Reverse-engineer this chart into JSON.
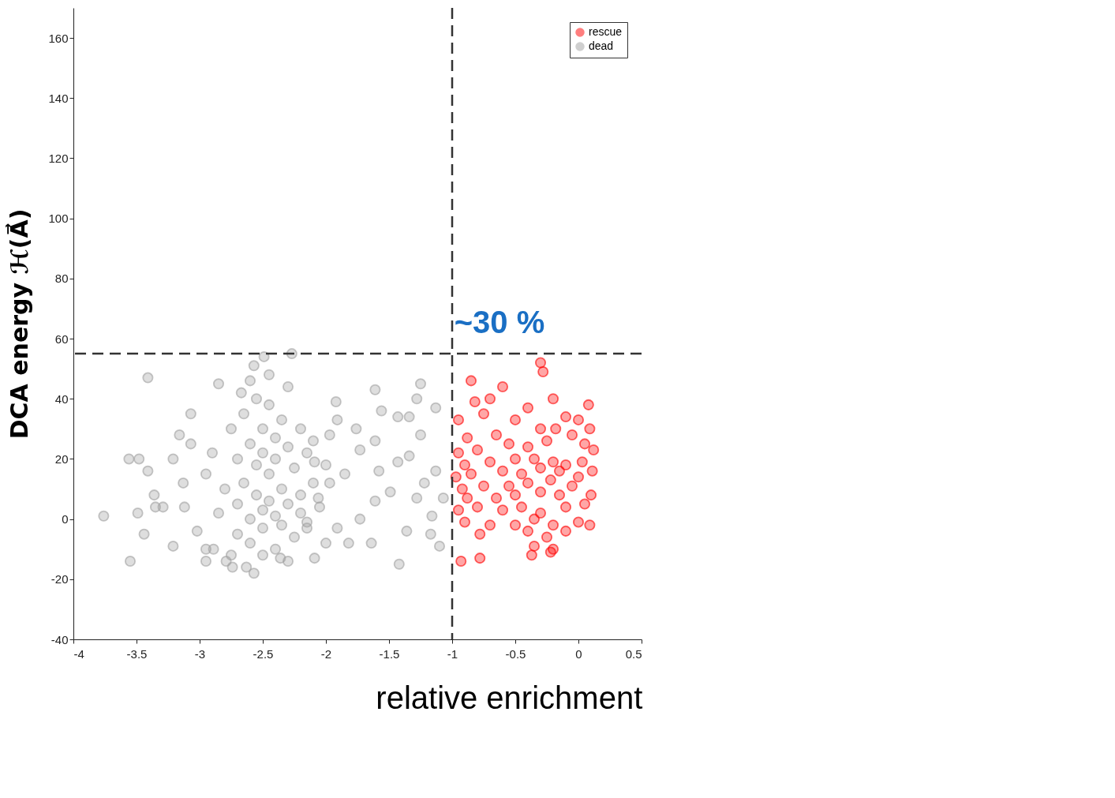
{
  "chart_data": {
    "type": "scatter",
    "xlabel": "relative enrichment",
    "ylabel": "DCA energy ℋ(A⃗)",
    "xlim": [
      -4,
      0.5
    ],
    "xticks": [
      -4,
      -3.5,
      -3,
      -2.5,
      -2,
      -1.5,
      -1,
      -0.5,
      0,
      0.5
    ],
    "ylim": [
      -40,
      170
    ],
    "yticks": [
      -40,
      -20,
      0,
      20,
      40,
      60,
      80,
      100,
      120,
      140,
      160
    ],
    "grid": false,
    "legend": "top right",
    "marker": "circle",
    "ref_lines": [
      {
        "axis": "x",
        "value": -1,
        "line_style": "dashed",
        "color": "#333333"
      },
      {
        "axis": "y",
        "value": 55,
        "line_style": "dashed",
        "color": "#333333"
      }
    ],
    "annotations": [
      "~30 %"
    ],
    "series": [
      {
        "name": "rescue",
        "color": "#ff0000",
        "x": [
          -0.93,
          -0.78,
          -0.37,
          -0.22,
          -0.3,
          -0.28,
          -0.85,
          -0.6,
          -0.2,
          -0.82,
          -0.7,
          0.08,
          -0.4,
          -0.95,
          -0.75,
          -0.5,
          -0.1,
          0.0,
          0.09,
          -0.88,
          -0.65,
          -0.3,
          -0.18,
          -0.05,
          -0.95,
          -0.8,
          -0.55,
          -0.4,
          -0.25,
          0.05,
          0.12,
          -0.9,
          -0.7,
          -0.5,
          -0.35,
          -0.2,
          -0.1,
          0.03,
          -0.97,
          -0.85,
          -0.6,
          -0.45,
          -0.3,
          -0.15,
          0.11,
          -0.92,
          -0.75,
          -0.55,
          -0.4,
          -0.22,
          -0.05,
          0.0,
          -0.88,
          -0.65,
          -0.5,
          -0.3,
          -0.15,
          0.1,
          -0.95,
          -0.8,
          -0.6,
          -0.45,
          -0.3,
          -0.1,
          0.05,
          -0.9,
          -0.7,
          -0.5,
          -0.35,
          -0.2,
          0.0,
          0.09,
          -0.78,
          -0.4,
          -0.25,
          -0.1,
          -0.2,
          -0.35
        ],
        "values": [
          -14,
          -13,
          -12,
          -11,
          52,
          49,
          46,
          44,
          40,
          39,
          40,
          38,
          37,
          33,
          35,
          33,
          34,
          33,
          30,
          27,
          28,
          30,
          30,
          28,
          22,
          23,
          25,
          24,
          26,
          25,
          23,
          18,
          19,
          20,
          20,
          19,
          18,
          19,
          14,
          15,
          16,
          15,
          17,
          16,
          16,
          10,
          11,
          11,
          12,
          13,
          11,
          14,
          7,
          7,
          8,
          9,
          8,
          8,
          3,
          4,
          3,
          4,
          2,
          4,
          5,
          -1,
          -2,
          -2,
          0,
          -2,
          -1,
          -2,
          -5,
          -4,
          -6,
          -4,
          -10,
          -9
        ]
      },
      {
        "name": "dead",
        "color": "#a0a0a0",
        "x": [
          -3.41,
          -3.76,
          -3.55,
          -3.56,
          -3.48,
          -3.41,
          -3.49,
          -3.44,
          -3.36,
          -3.35,
          -3.29,
          -3.21,
          -3.21,
          -3.16,
          -3.13,
          -3.07,
          -3.07,
          -3.12,
          -3.02,
          -2.95,
          -2.95,
          -2.89,
          -2.85,
          -2.79,
          -2.74,
          -2.67,
          -2.57,
          -2.49,
          -2.27,
          -2.36,
          -2.57,
          -2.63,
          -2.09,
          -1.92,
          -1.61,
          -1.56,
          -1.43,
          -1.34,
          -1.25,
          -1.28,
          -1.13,
          -1.42,
          -1.36,
          -1.17,
          -1.1,
          -1.25,
          -1.43,
          -1.49,
          -1.61,
          -1.73,
          -1.82,
          -1.91,
          -1.85,
          -1.73,
          -1.61,
          -1.76,
          -1.97,
          -2.06,
          -2.15,
          -1.22,
          -1.13,
          -1.07,
          -1.16,
          -1.28,
          -1.34,
          -1.58,
          -1.64,
          -1.97,
          -2.09,
          -1.91,
          -2.75,
          -2.7,
          -2.7,
          -2.7,
          -2.65,
          -2.65,
          -2.6,
          -2.6,
          -2.6,
          -2.55,
          -2.55,
          -2.55,
          -2.5,
          -2.5,
          -2.5,
          -2.5,
          -2.45,
          -2.45,
          -2.45,
          -2.4,
          -2.4,
          -2.4,
          -2.4,
          -2.35,
          -2.35,
          -2.35,
          -2.3,
          -2.3,
          -2.3,
          -2.25,
          -2.25,
          -2.2,
          -2.2,
          -2.2,
          -2.15,
          -2.15,
          -2.1,
          -2.1,
          -2.05,
          -2.0,
          -2.0,
          -2.8,
          -2.85,
          -2.9,
          -2.95,
          -2.75,
          -2.6,
          -2.45,
          -2.3,
          -2.5
        ],
        "values": [
          47,
          1,
          -14,
          20,
          20,
          16,
          2,
          -5,
          8,
          4,
          4,
          -9,
          20,
          28,
          12,
          35,
          25,
          4,
          -4,
          -10,
          -14,
          -10,
          45,
          -14,
          -16,
          42,
          51,
          54,
          55,
          -13,
          -18,
          -16,
          -13,
          39,
          43,
          36,
          34,
          34,
          45,
          40,
          37,
          -15,
          -4,
          -5,
          -9,
          28,
          19,
          9,
          6,
          0,
          -8,
          -3,
          15,
          23,
          26,
          30,
          28,
          7,
          -3,
          12,
          16,
          7,
          1,
          7,
          21,
          16,
          -8,
          12,
          19,
          33,
          30,
          20,
          5,
          -5,
          35,
          12,
          25,
          0,
          -8,
          40,
          18,
          8,
          30,
          22,
          3,
          -3,
          38,
          15,
          6,
          27,
          20,
          1,
          -10,
          33,
          10,
          -2,
          44,
          24,
          5,
          17,
          -6,
          30,
          8,
          2,
          22,
          -1,
          26,
          12,
          4,
          18,
          -8,
          10,
          2,
          22,
          15,
          -12,
          46,
          48,
          -14,
          -12
        ]
      }
    ]
  }
}
